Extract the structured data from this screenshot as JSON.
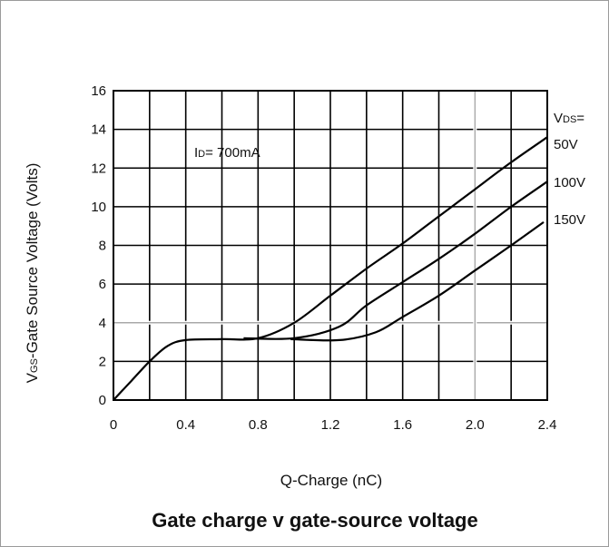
{
  "chart_data": {
    "type": "line",
    "title": "Gate charge v gate-source voltage",
    "xlabel": "Q-Charge (nC)",
    "ylabel_main": "V",
    "ylabel_sub": "GS",
    "ylabel_rest": "-Gate Source Voltage (Volts)",
    "xlim": [
      0,
      2.4
    ],
    "ylim": [
      0,
      16
    ],
    "xticks": [
      "0",
      "0.4",
      "0.8",
      "1.2",
      "1.6",
      "2.0",
      "2.4"
    ],
    "xtick_values": [
      0,
      0.4,
      0.8,
      1.2,
      1.6,
      2.0,
      2.4
    ],
    "yticks": [
      "0",
      "2",
      "4",
      "6",
      "8",
      "10",
      "12",
      "14",
      "16"
    ],
    "ytick_values": [
      0,
      2,
      4,
      6,
      8,
      10,
      12,
      14,
      16
    ],
    "grid": true,
    "condition": {
      "main": "I",
      "sub": "D",
      "rest": "= 700mA"
    },
    "legend_header": {
      "main": "V",
      "sub": "DS",
      "rest": "="
    },
    "series": [
      {
        "name": "50V",
        "points": [
          [
            0,
            0
          ],
          [
            0.05,
            0.5
          ],
          [
            0.1,
            1.0
          ],
          [
            0.2,
            2.0
          ],
          [
            0.3,
            2.8
          ],
          [
            0.4,
            3.1
          ],
          [
            0.6,
            3.15
          ],
          [
            0.8,
            3.2
          ],
          [
            1.0,
            4.0
          ],
          [
            1.2,
            5.4
          ],
          [
            1.4,
            6.8
          ],
          [
            1.6,
            8.1
          ],
          [
            1.8,
            9.5
          ],
          [
            2.0,
            10.9
          ],
          [
            2.2,
            12.3
          ],
          [
            2.4,
            13.6
          ]
        ]
      },
      {
        "name": "100V",
        "points": [
          [
            0.72,
            3.2
          ],
          [
            1.0,
            3.2
          ],
          [
            1.25,
            3.8
          ],
          [
            1.4,
            4.9
          ],
          [
            1.6,
            6.1
          ],
          [
            1.8,
            7.3
          ],
          [
            2.0,
            8.6
          ],
          [
            2.2,
            10.0
          ],
          [
            2.4,
            11.3
          ]
        ]
      },
      {
        "name": "150V",
        "points": [
          [
            0.98,
            3.15
          ],
          [
            1.25,
            3.1
          ],
          [
            1.45,
            3.5
          ],
          [
            1.6,
            4.3
          ],
          [
            1.8,
            5.4
          ],
          [
            2.0,
            6.7
          ],
          [
            2.2,
            8.0
          ],
          [
            2.38,
            9.2
          ]
        ]
      }
    ],
    "reference_lines": [
      {
        "orientation": "horizontal",
        "y": 4
      },
      {
        "orientation": "vertical",
        "x": 2.0
      }
    ]
  }
}
